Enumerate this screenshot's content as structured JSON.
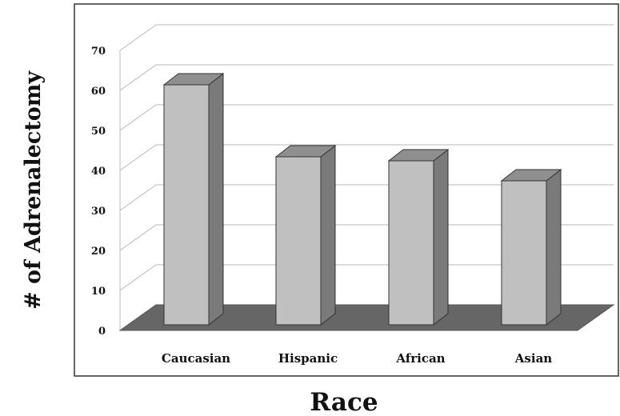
{
  "chart_data": {
    "type": "bar",
    "categories": [
      "Caucasian",
      "Hispanic",
      "African",
      "Asian"
    ],
    "values": [
      60,
      42,
      41,
      36
    ],
    "title": "",
    "xlabel": "Race",
    "ylabel": "# of Adrenalectomy",
    "ylim": [
      0,
      70
    ],
    "yticks": [
      0,
      10,
      20,
      30,
      40,
      50,
      60,
      70
    ],
    "grid": true,
    "legend": "none",
    "style": "3d",
    "colors": {
      "bar_front": "#c0c0c0",
      "bar_side": "#7a7a7a",
      "bar_top": "#8f8f8f",
      "floor": "#666666",
      "grid": "#b8b8b8",
      "frame": "#333333"
    }
  }
}
